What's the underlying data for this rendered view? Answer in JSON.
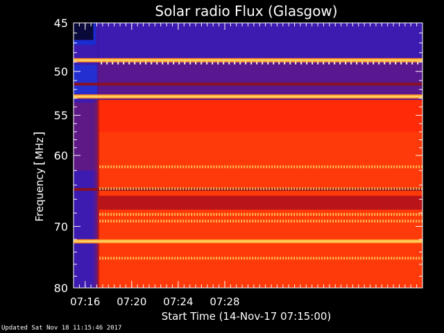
{
  "chart_data": {
    "type": "heatmap",
    "title": "Solar radio Flux (Glasgow)",
    "xlabel": "Start Time (14-Nov-17 07:15:00)",
    "ylabel_text": "Frequency",
    "ylabel_unit": "MHz",
    "x_range_min": [
      0,
      30
    ],
    "x_ticks": [
      {
        "min": 1,
        "label": "07:16"
      },
      {
        "min": 5,
        "label": "07:20"
      },
      {
        "min": 9,
        "label": "07:24"
      },
      {
        "min": 13,
        "label": "07:28"
      }
    ],
    "y_range_mhz": [
      45,
      80
    ],
    "y_scale": "log",
    "y_ticks": [
      {
        "mhz": 45,
        "label": "45"
      },
      {
        "mhz": 50,
        "label": "50"
      },
      {
        "mhz": 55,
        "label": "55"
      },
      {
        "mhz": 60,
        "label": "60"
      },
      {
        "mhz": 70,
        "label": "70"
      },
      {
        "mhz": 80,
        "label": "80"
      }
    ],
    "x_minor_every_min": 0.5,
    "y_minor_mhz": [
      46,
      47,
      48,
      49,
      51,
      52,
      53,
      54,
      56,
      57,
      58,
      59,
      62,
      64,
      66,
      68,
      72,
      74,
      76,
      78
    ],
    "colors": {
      "quiet": "#3d1bb0",
      "low": "#6a1a78",
      "mid": "#b8141a",
      "high": "#ff3a0a",
      "peak": "#ffd060",
      "axis": "#ffffff"
    },
    "transition_minute": 2.1,
    "bright_lines_mhz": [
      48.8,
      52.8,
      72.3
    ],
    "dark_lines_mhz": [
      51.4,
      64.6
    ],
    "dotted_lines_mhz": [
      61.5,
      64.5,
      68.2,
      69.2,
      75.0
    ]
  },
  "footer": {
    "updated": "Updated Sat Nov 18 11:15:46 2017"
  }
}
